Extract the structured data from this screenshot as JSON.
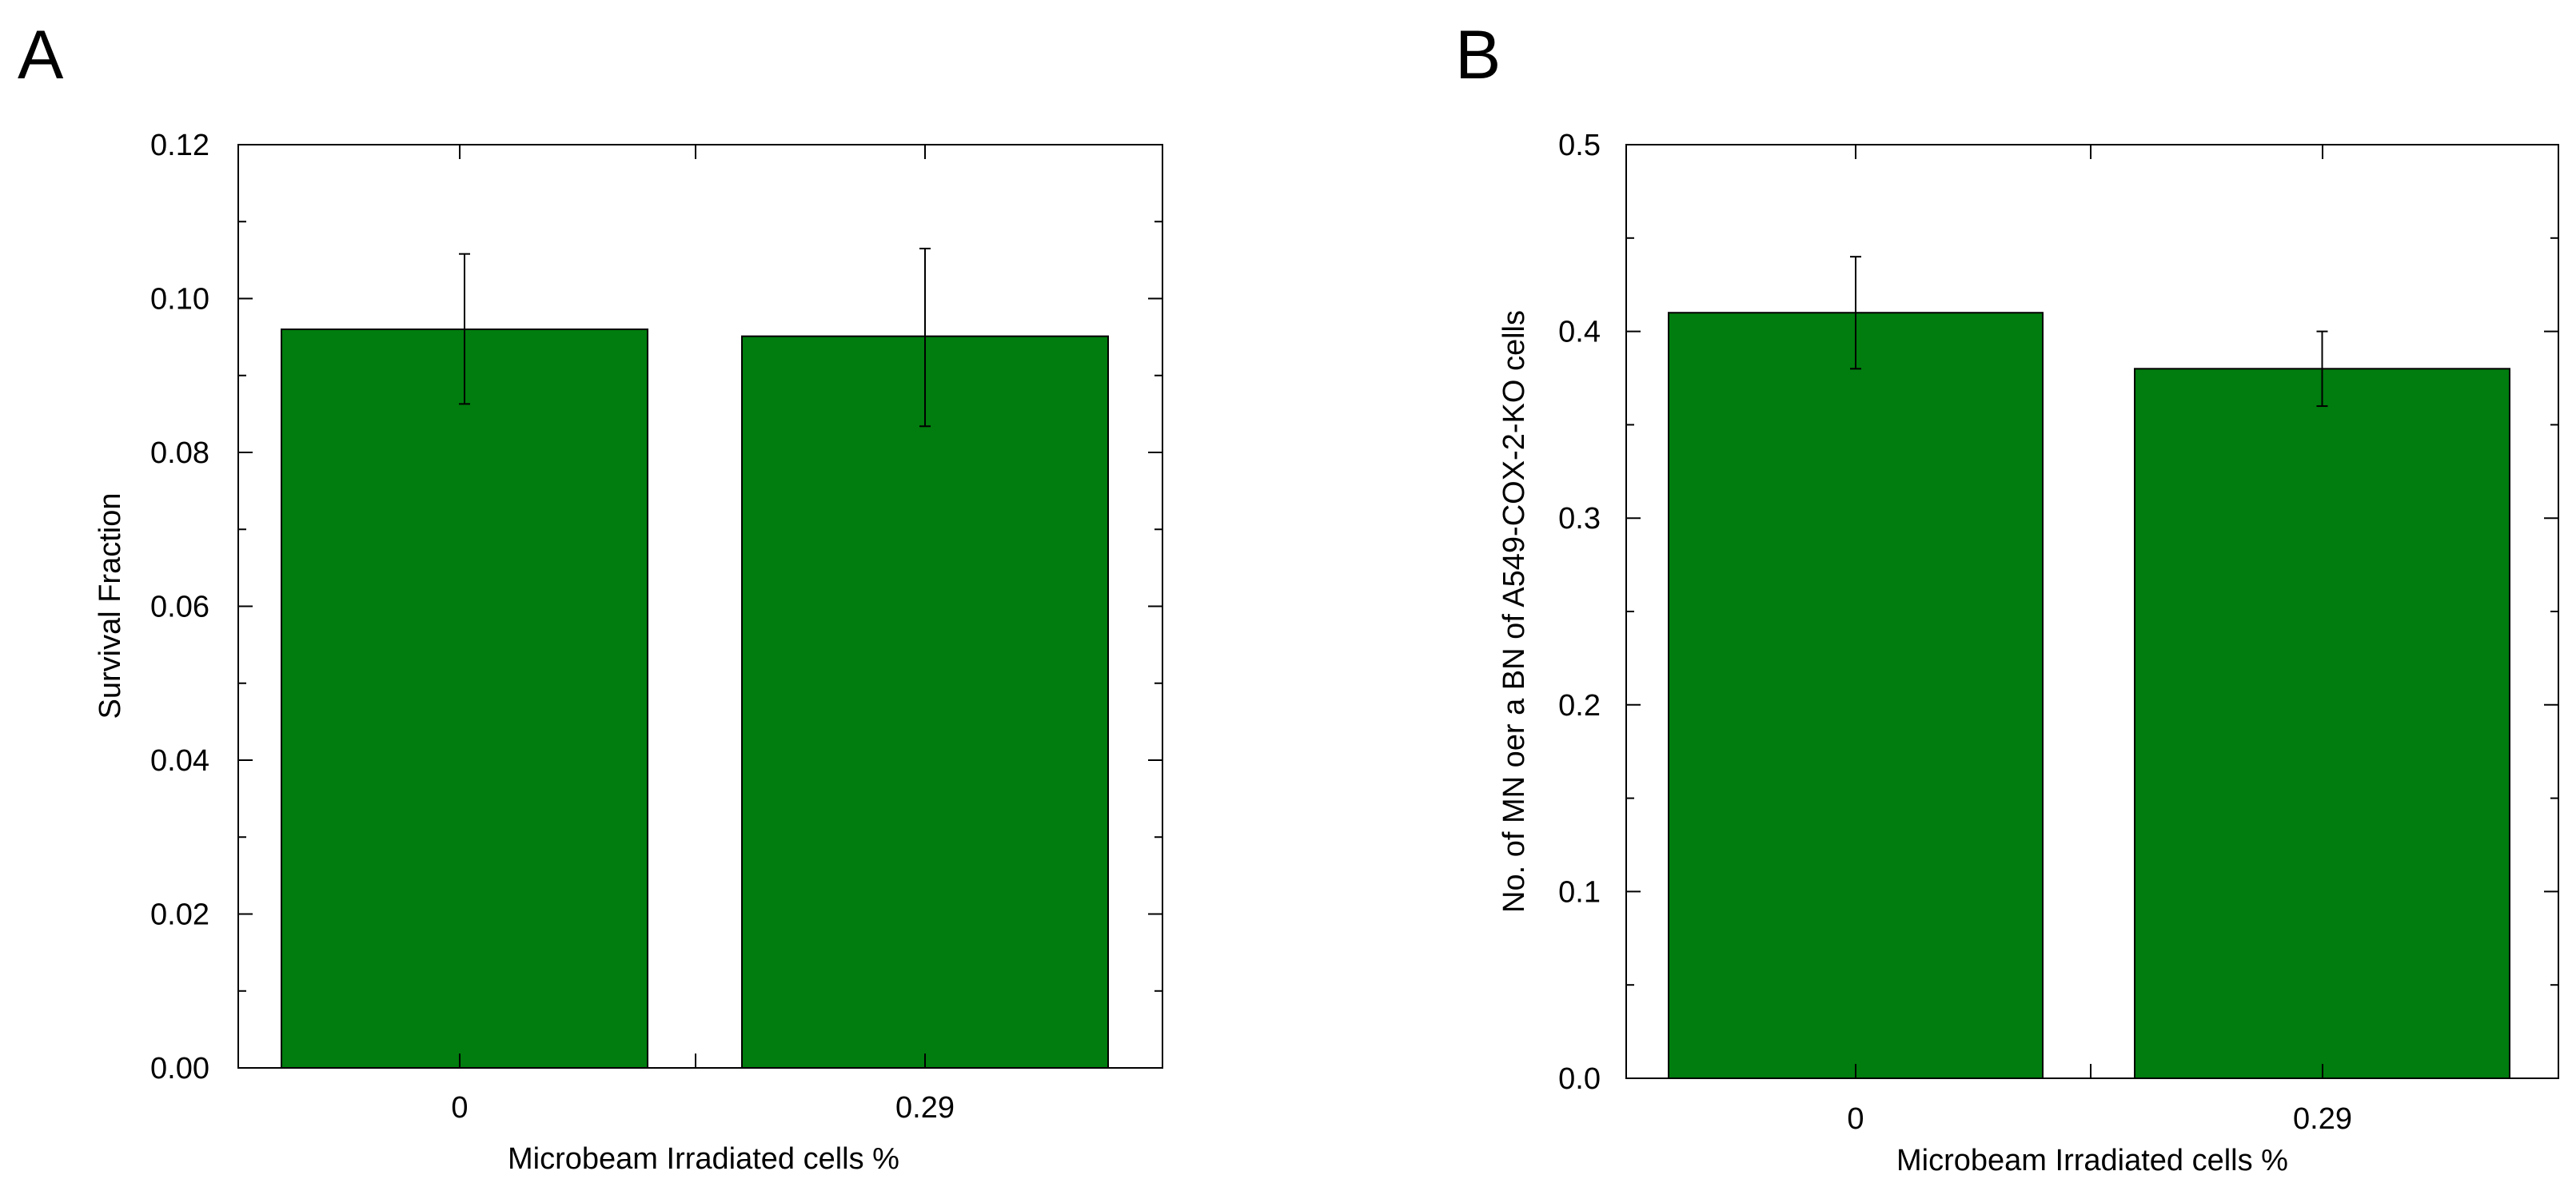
{
  "figure": {
    "background": "#ffffff",
    "bar_color": "#007d0e",
    "axis_color": "#000000"
  },
  "chart_data": [
    {
      "type": "bar",
      "panel_label": "A",
      "categories": [
        "0",
        "0.29"
      ],
      "values": [
        0.096,
        0.0951
      ],
      "errors": [
        [
          0.0863,
          0.1058
        ],
        [
          0.0834,
          0.1065
        ]
      ],
      "xlabel": "Microbeam Irradiated cells %",
      "ylabel": "Survival Fraction",
      "ylim": [
        0,
        0.12
      ],
      "yticks": [
        0,
        0.02,
        0.04,
        0.06,
        0.08,
        0.1,
        0.12
      ],
      "ytick_labels": [
        "0.00",
        "0.02",
        "0.04",
        "0.06",
        "0.08",
        "0.10",
        "0.12"
      ],
      "minor_step": 0.01,
      "grid": false
    },
    {
      "type": "bar",
      "panel_label": "B",
      "categories": [
        "0",
        "0.29"
      ],
      "values": [
        0.41,
        0.38
      ],
      "errors": [
        [
          0.38,
          0.44
        ],
        [
          0.36,
          0.4
        ]
      ],
      "xlabel": "Microbeam Irradiated cells %",
      "ylabel": "No. of MN oer a BN of A549-COX-2-KO cells",
      "ylim": [
        0,
        0.5
      ],
      "yticks": [
        0,
        0.1,
        0.2,
        0.3,
        0.4,
        0.5
      ],
      "ytick_labels": [
        "0.0",
        "0.1",
        "0.2",
        "0.3",
        "0.4",
        "0.5"
      ],
      "minor_step": 0.05,
      "grid": false
    }
  ]
}
